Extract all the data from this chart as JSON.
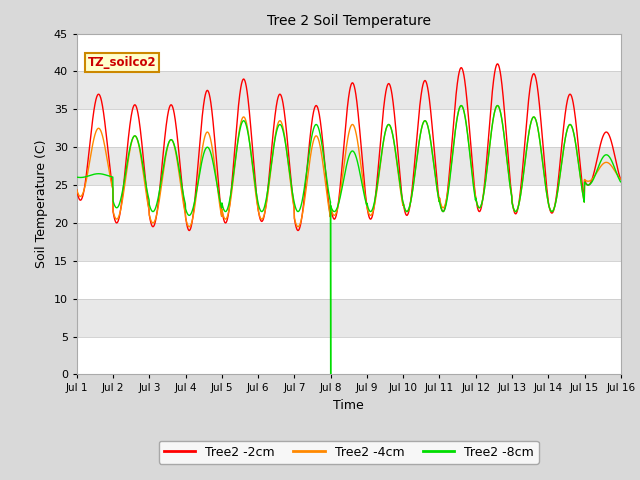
{
  "title": "Tree 2 Soil Temperature",
  "xlabel": "Time",
  "ylabel": "Soil Temperature (C)",
  "xlim": [
    0,
    15
  ],
  "ylim": [
    0,
    45
  ],
  "yticks": [
    0,
    5,
    10,
    15,
    20,
    25,
    30,
    35,
    40,
    45
  ],
  "xtick_labels": [
    "Jul 1",
    "Jul 2",
    "Jul 3",
    "Jul 4",
    "Jul 5",
    "Jul 6",
    "Jul 7",
    "Jul 8",
    "Jul 9",
    "Jul 10",
    "Jul 11",
    "Jul 12",
    "Jul 13",
    "Jul 14",
    "Jul 15",
    "Jul 16"
  ],
  "annotation_text": "TZ_soilco2",
  "fig_bg": "#d9d9d9",
  "line_colors": {
    "2cm": "#ff0000",
    "4cm": "#ff8800",
    "8cm": "#00dd00"
  },
  "legend_labels": [
    "Tree2 -2cm",
    "Tree2 -4cm",
    "Tree2 -8cm"
  ],
  "days": 15,
  "red_peaks": [
    37.0,
    35.6,
    35.6,
    37.5,
    39.0,
    37.0,
    35.5,
    38.5,
    38.4,
    38.8,
    40.5,
    41.0,
    39.7,
    37.0,
    32.0
  ],
  "red_mins": [
    23.0,
    20.0,
    19.5,
    19.0,
    20.0,
    20.2,
    19.0,
    20.5,
    20.5,
    21.0,
    21.5,
    21.5,
    21.2,
    21.3,
    25.0
  ],
  "orange_peaks": [
    32.5,
    31.5,
    31.0,
    32.0,
    34.0,
    33.5,
    31.5,
    33.0,
    33.0,
    33.5,
    35.5,
    35.5,
    34.0,
    33.0,
    28.0
  ],
  "orange_mins": [
    23.5,
    20.5,
    20.0,
    19.5,
    20.5,
    20.5,
    19.5,
    21.0,
    21.0,
    21.5,
    22.0,
    22.0,
    21.5,
    21.5,
    25.5
  ],
  "green_peaks": [
    26.5,
    31.5,
    31.0,
    30.0,
    33.5,
    33.0,
    33.0,
    29.5,
    33.0,
    33.5,
    35.5,
    35.5,
    34.0,
    33.0,
    29.0
  ],
  "green_mins": [
    26.0,
    22.0,
    21.5,
    21.0,
    21.5,
    21.5,
    21.5,
    21.5,
    21.5,
    21.5,
    21.5,
    22.0,
    21.5,
    21.5,
    25.0
  ],
  "green_spike_day": 7,
  "band_colors": [
    "#ffffff",
    "#e8e8e8"
  ]
}
